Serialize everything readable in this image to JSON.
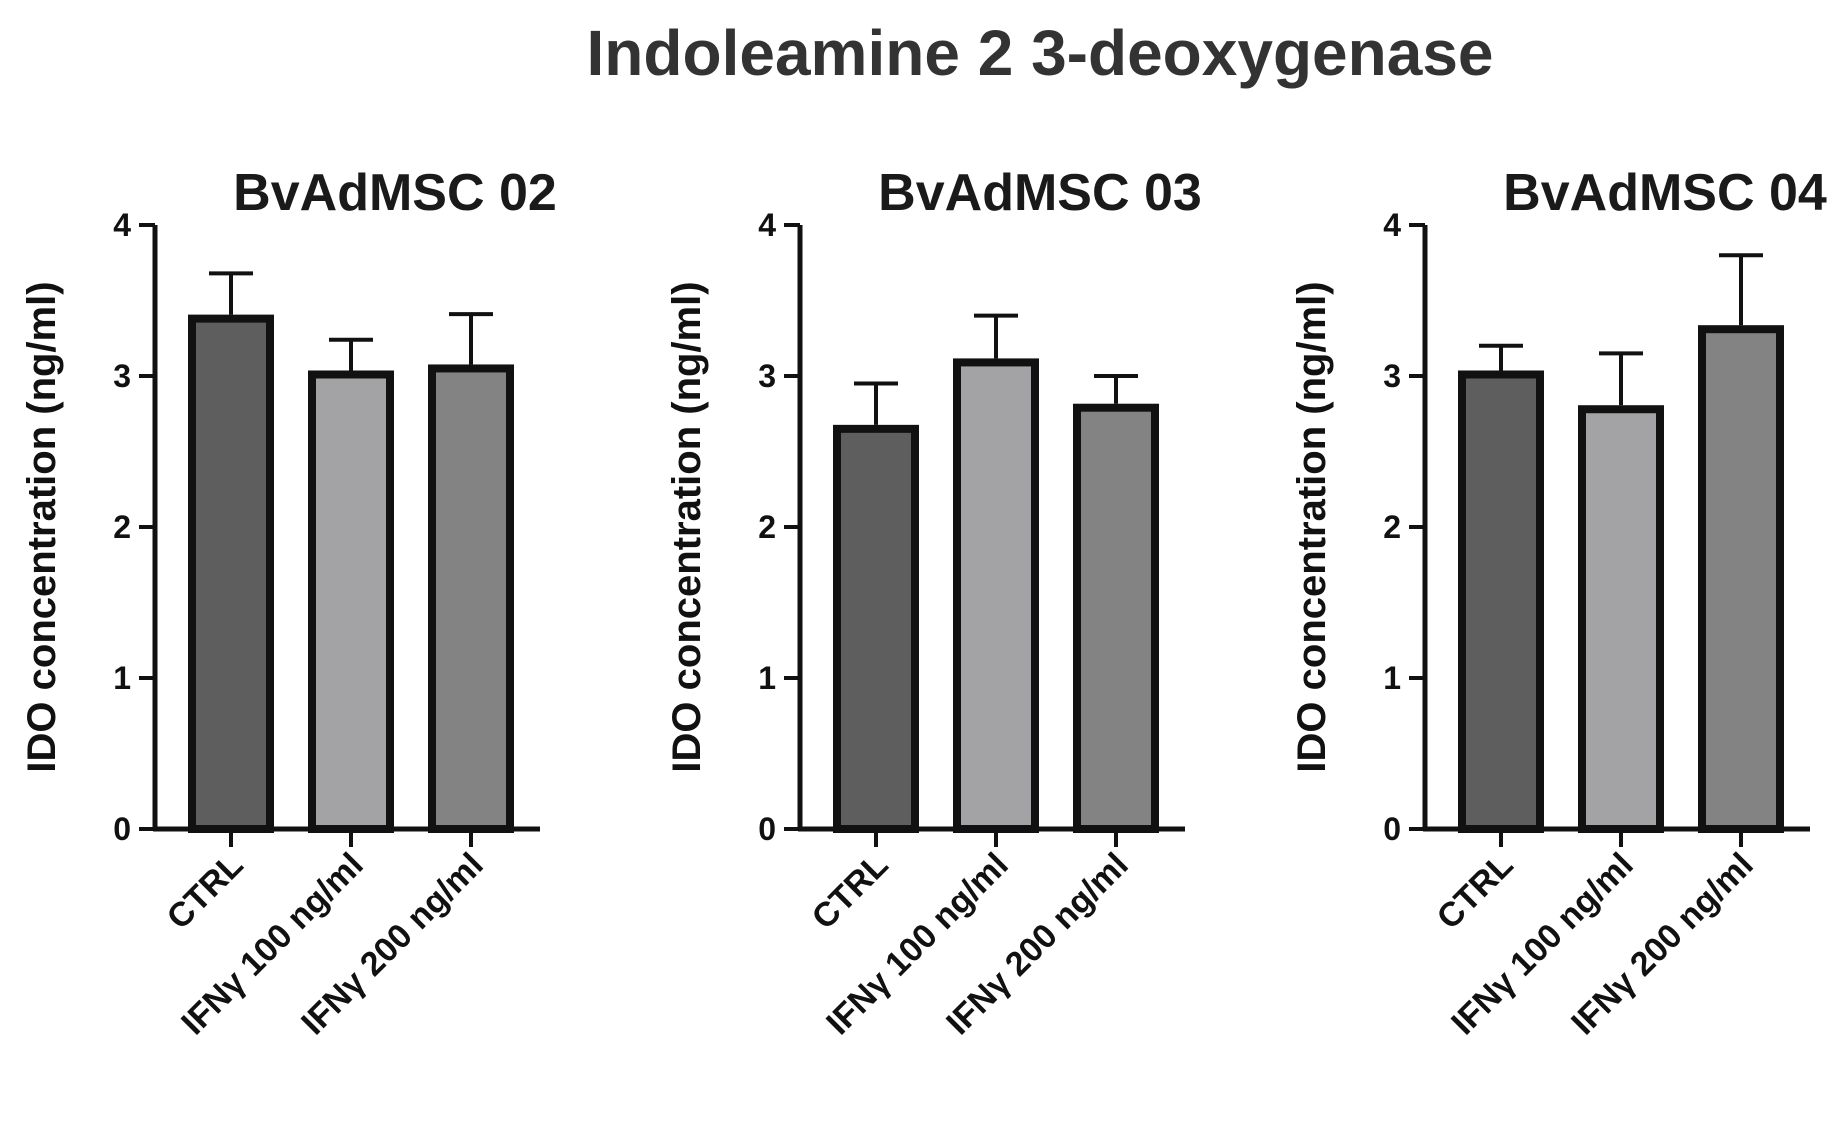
{
  "figure": {
    "title": "Indoleamine 2 3-deoxygenase"
  },
  "colors": {
    "ctrl": "#5e5e5e",
    "ifn100": "#a3a3a6",
    "ifn200": "#838383",
    "stroke": "#111111"
  },
  "chart_data": [
    {
      "type": "bar",
      "title": "BvAdMSC 02",
      "xlabel": "",
      "ylabel": "IDO concentration (ng/ml)",
      "ylim": [
        0,
        4
      ],
      "yticks": [
        "0",
        "1",
        "2",
        "3",
        "4"
      ],
      "categories": [
        "CTRL",
        "IFNγ 100 ng/ml",
        "IFNγ 200 ng/ml"
      ],
      "values": [
        3.38,
        3.01,
        3.05
      ],
      "errors": [
        0.3,
        0.23,
        0.36
      ]
    },
    {
      "type": "bar",
      "title": "BvAdMSC 03",
      "xlabel": "",
      "ylabel": "IDO concentration (ng/ml)",
      "ylim": [
        0,
        4
      ],
      "yticks": [
        "0",
        "1",
        "2",
        "3",
        "4"
      ],
      "categories": [
        "CTRL",
        "IFNγ 100 ng/ml",
        "IFNγ 200 ng/ml"
      ],
      "values": [
        2.65,
        3.09,
        2.79
      ],
      "errors": [
        0.3,
        0.31,
        0.21
      ]
    },
    {
      "type": "bar",
      "title": "BvAdMSC 04",
      "xlabel": "",
      "ylabel": "IDO concentration (ng/ml)",
      "ylim": [
        0,
        4
      ],
      "yticks": [
        "0",
        "1",
        "2",
        "3",
        "4"
      ],
      "categories": [
        "CTRL",
        "IFNγ 100 ng/ml",
        "IFNγ 200 ng/ml"
      ],
      "values": [
        3.01,
        2.78,
        3.31
      ],
      "errors": [
        0.19,
        0.37,
        0.49
      ]
    }
  ]
}
